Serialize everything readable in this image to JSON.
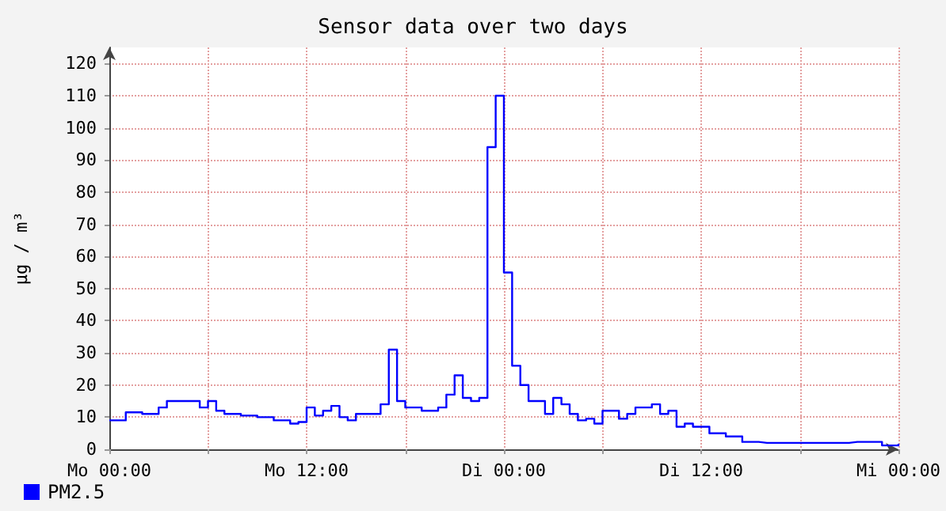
{
  "chart_data": {
    "type": "step",
    "title": "Sensor data over two days",
    "ylabel": "µg / m³",
    "categories": [
      "Mo 00:00",
      null,
      null,
      null,
      null,
      null,
      null,
      null,
      null,
      null,
      null,
      null,
      null,
      null,
      null,
      null,
      null,
      null,
      null,
      null,
      null,
      null,
      null,
      null,
      "Mo 12:00",
      null,
      null,
      null,
      null,
      null,
      null,
      null,
      null,
      null,
      null,
      null,
      null,
      null,
      null,
      null,
      null,
      null,
      null,
      null,
      null,
      null,
      null,
      null,
      "Di 00:00",
      null,
      null,
      null,
      null,
      null,
      null,
      null,
      null,
      null,
      null,
      null,
      null,
      null,
      null,
      null,
      null,
      null,
      null,
      null,
      null,
      null,
      null,
      null,
      "Di 12:00",
      null,
      null,
      null,
      null,
      null,
      null,
      null,
      null,
      null,
      null,
      null,
      null,
      null,
      null,
      null,
      null,
      null,
      null,
      null,
      null,
      null,
      null,
      null,
      "Mi 00:00"
    ],
    "ylim": [
      0,
      125
    ],
    "yticks": [
      0,
      10,
      20,
      30,
      40,
      50,
      60,
      70,
      80,
      90,
      100,
      110,
      120
    ],
    "grid": true,
    "legend": "bottom left",
    "marker": "none",
    "line_style": "solid",
    "series": [
      {
        "name": "PM2.5",
        "color": "#0000ff",
        "values": [
          9,
          9,
          11.5,
          11.5,
          11,
          11,
          13,
          15,
          15,
          15,
          15,
          13,
          15,
          12,
          11,
          11,
          10.5,
          10.5,
          10,
          10,
          9,
          9,
          8,
          8.5,
          13,
          10.5,
          12,
          13.5,
          10,
          9,
          11,
          11,
          11,
          14,
          31,
          15,
          13,
          13,
          12,
          12,
          13,
          17,
          23,
          16,
          15,
          16,
          94,
          110,
          55,
          26,
          20,
          15,
          15,
          11,
          16,
          14,
          11,
          9,
          9.5,
          8,
          12,
          12,
          9.5,
          11,
          13,
          13,
          14,
          11,
          12,
          7,
          8,
          7,
          7,
          5,
          5,
          4,
          4,
          2.3,
          2.3,
          2,
          2,
          2,
          2,
          2,
          2,
          2,
          2,
          2,
          2,
          2,
          2.3,
          2.3,
          2.3,
          2.3,
          1.2,
          1.2,
          1.7
        ]
      }
    ]
  }
}
